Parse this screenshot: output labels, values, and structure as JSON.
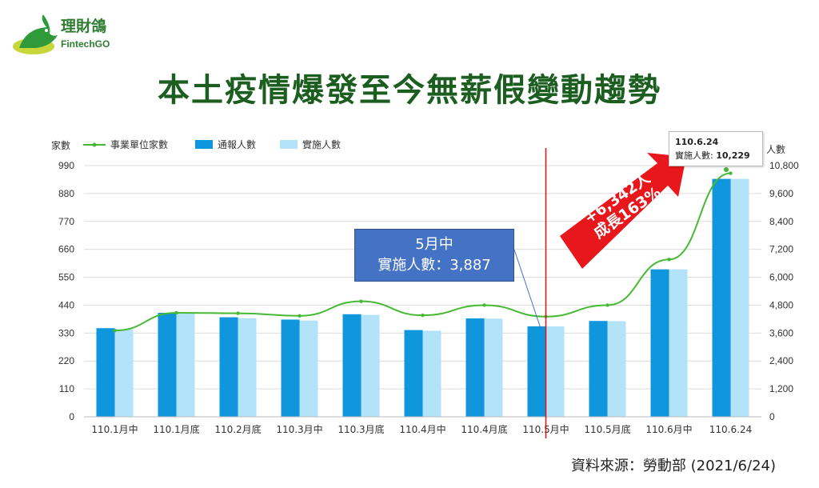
{
  "logo": {
    "name": "理財鴿",
    "sub": "FintechGO"
  },
  "title": "本土疫情爆發至今無薪假變動趨勢",
  "source": "資料來源：勞動部 (2021/6/24)",
  "callout": {
    "line1": "5月中",
    "line2": "實施人數：3,887"
  },
  "tooltip": {
    "date": "110.6.24",
    "label": "實施人數: ",
    "value": "10,229"
  },
  "growth": {
    "line1": "+6,342人",
    "line2": "成長163%"
  },
  "colors": {
    "notified": "#0f96dc",
    "implemented": "#b3e3f9",
    "firms": "#46b933",
    "marker": "#d21e1e",
    "arrow": "#e8171b",
    "title": "#1b5e20"
  },
  "chart_data": {
    "type": "bar",
    "categories": [
      "110.1月中",
      "110.1月底",
      "110.2月底",
      "110.3月中",
      "110.3月底",
      "110.4月中",
      "110.4月底",
      "110.5月中",
      "110.5月底",
      "110.6月中",
      "110.6.24"
    ],
    "series": [
      {
        "name": "通報人數",
        "type": "bar",
        "axis": "right",
        "values": [
          3810,
          4470,
          4280,
          4180,
          4410,
          3730,
          4230,
          3890,
          4120,
          6340,
          10229
        ]
      },
      {
        "name": "實施人數",
        "type": "bar",
        "axis": "right",
        "values": [
          3770,
          4460,
          4240,
          4140,
          4380,
          3700,
          4220,
          3887,
          4110,
          6340,
          10229
        ]
      },
      {
        "name": "事業單位家數",
        "type": "line",
        "axis": "left",
        "values": [
          340,
          410,
          408,
          398,
          455,
          400,
          440,
          395,
          440,
          620,
          960
        ]
      }
    ],
    "left_axis": {
      "label": "家數",
      "ticks": [
        "0",
        "110",
        "220",
        "330",
        "440",
        "550",
        "660",
        "770",
        "880",
        "990"
      ],
      "range": [
        0,
        990
      ]
    },
    "right_axis": {
      "label": "人數",
      "ticks": [
        "0",
        "1,200",
        "2,400",
        "3,600",
        "4,800",
        "6,000",
        "7,200",
        "8,400",
        "9,600",
        "10,800"
      ],
      "range": [
        0,
        10800
      ]
    },
    "legend": [
      "事業單位家數",
      "通報人數",
      "實施人數"
    ],
    "legend_position": "top-left",
    "grid": true,
    "marker_category": "110.5月中"
  }
}
